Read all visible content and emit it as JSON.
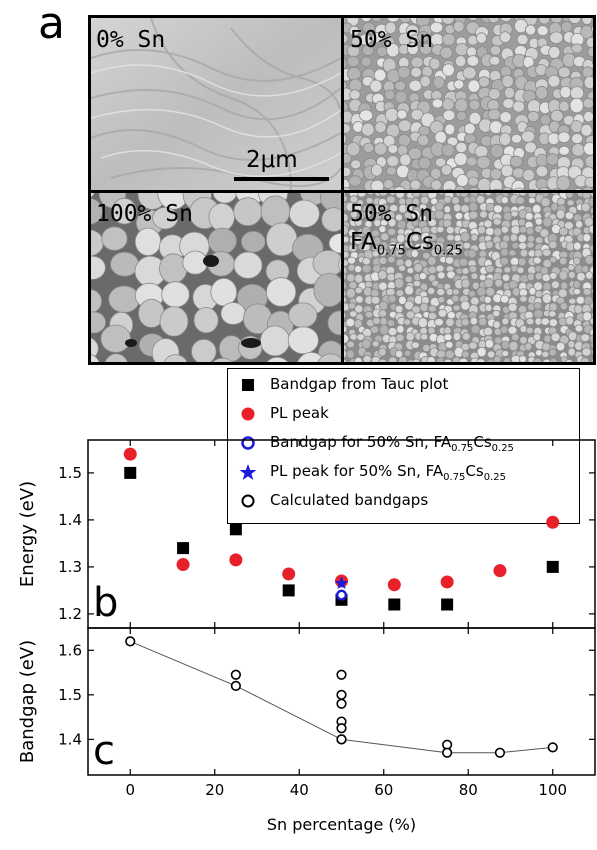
{
  "panel_labels": {
    "a": "a",
    "b": "b",
    "c": "c"
  },
  "sem": {
    "tiles": [
      {
        "label": "0% Sn"
      },
      {
        "label": "50% Sn"
      },
      {
        "label": "100% Sn"
      },
      {
        "label_line1": "50% Sn",
        "label_line2_base": "FA",
        "label_line2_sub1": "0.75",
        "label_line2_mid": "Cs",
        "label_line2_sub2": "0.25"
      }
    ],
    "scalebar_label": "2μm"
  },
  "legend": {
    "items": [
      {
        "text": "Bandgap from Tauc plot",
        "marker": "filled-square",
        "color": "#000000"
      },
      {
        "text": "PL peak",
        "marker": "filled-circle",
        "color": "#e8202a"
      },
      {
        "text_base": "Bandgap for 50% Sn, FA",
        "sub1": "0.75",
        "mid": "Cs",
        "sub2": "0.25",
        "marker": "open-circle",
        "color": "#1a1ad8"
      },
      {
        "text_base": "PL peak for 50% Sn, FA",
        "sub1": "0.75",
        "mid": "Cs",
        "sub2": "0.25",
        "marker": "star",
        "color": "#1a1ad8"
      },
      {
        "text": "Calculated bandgaps",
        "marker": "open-circle",
        "color": "#000000"
      }
    ]
  },
  "chart_data": [
    {
      "type": "scatter",
      "panel": "b",
      "ylabel": "Energy (eV)",
      "xlim": [
        -10,
        110
      ],
      "ylim": [
        1.17,
        1.57
      ],
      "yticks": [
        1.2,
        1.3,
        1.4,
        1.5
      ],
      "series": [
        {
          "name": "Bandgap from Tauc plot",
          "color": "#000000",
          "marker": "filled-square",
          "x": [
            0,
            12.5,
            25,
            37.5,
            50,
            62.5,
            75,
            100
          ],
          "y": [
            1.5,
            1.34,
            1.38,
            1.25,
            1.23,
            1.22,
            1.22,
            1.3
          ]
        },
        {
          "name": "PL peak",
          "color": "#e8202a",
          "marker": "filled-circle",
          "x": [
            0,
            12.5,
            25,
            37.5,
            50,
            62.5,
            75,
            87.5,
            100
          ],
          "y": [
            1.54,
            1.305,
            1.315,
            1.285,
            1.27,
            1.262,
            1.268,
            1.292,
            1.395
          ]
        },
        {
          "name": "Bandgap for 50% Sn, FA0.75Cs0.25",
          "color": "#1a1ad8",
          "marker": "open-circle",
          "x": [
            50
          ],
          "y": [
            1.24
          ]
        },
        {
          "name": "PL peak for 50% Sn, FA0.75Cs0.25",
          "color": "#1a1ad8",
          "marker": "star",
          "x": [
            50
          ],
          "y": [
            1.265
          ]
        }
      ]
    },
    {
      "type": "line",
      "panel": "c",
      "xlabel": "Sn percentage (%)",
      "ylabel": "Bandgap (eV)",
      "xlim": [
        -10,
        110
      ],
      "ylim": [
        1.32,
        1.65
      ],
      "xticks": [
        0,
        20,
        40,
        60,
        80,
        100
      ],
      "yticks": [
        1.4,
        1.5,
        1.6
      ],
      "series": [
        {
          "name": "Calculated bandgaps",
          "color": "#000000",
          "marker": "open-circle",
          "x": [
            0,
            25,
            25,
            50,
            50,
            50,
            50,
            50,
            50,
            50,
            75,
            75,
            87.5,
            100
          ],
          "y": [
            1.62,
            1.545,
            1.52,
            1.545,
            1.5,
            1.48,
            1.44,
            1.425,
            1.4,
            1.4,
            1.388,
            1.37,
            1.37,
            1.382
          ]
        },
        {
          "name": "",
          "color": "#555555",
          "marker": "line",
          "x": [
            0,
            25,
            50,
            75,
            87.5,
            100
          ],
          "y": [
            1.62,
            1.52,
            1.4,
            1.37,
            1.37,
            1.382
          ]
        }
      ]
    }
  ]
}
